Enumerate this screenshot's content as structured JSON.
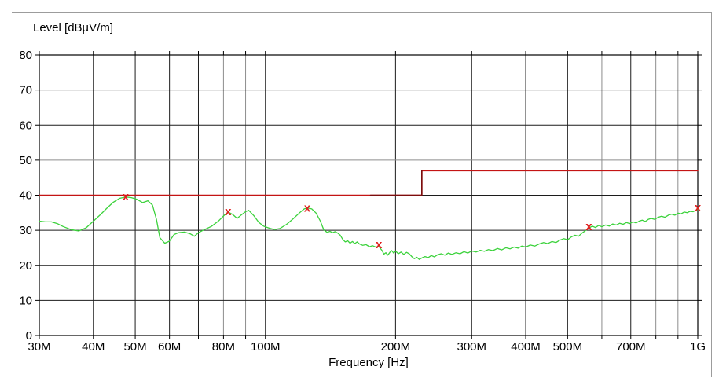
{
  "page": {
    "frame_color": "#9c9c9c"
  },
  "chart_data": {
    "type": "line",
    "title": "Level [dBµV/m]",
    "xlabel": "Frequency [Hz]",
    "x_scale": "log",
    "x_range_mhz": [
      30,
      1000
    ],
    "y_range": [
      0,
      80
    ],
    "grid_on": true,
    "colors": {
      "grid_dark": "#1c1c1c",
      "grid_gray": "#8d8d8d",
      "border": "#000000",
      "limit_red": "#c41414",
      "limit_dark_red": "#7b0d0d",
      "trace_green": "#3cd23c",
      "marker_red": "#e02020",
      "text": "#000000"
    },
    "y_ticks": [
      0,
      10,
      20,
      30,
      40,
      50,
      60,
      70,
      80
    ],
    "y_grid_dark": [
      10,
      20,
      30,
      40,
      60,
      70
    ],
    "y_grid_gray": [
      50
    ],
    "x_grid_dark_mhz": [
      40,
      50,
      60,
      70,
      100,
      200,
      300,
      400,
      500,
      700
    ],
    "x_grid_gray_mhz": [
      80,
      90,
      600,
      800,
      900
    ],
    "x_tick_labels": [
      {
        "f": 30,
        "label": "30M"
      },
      {
        "f": 40,
        "label": "40M"
      },
      {
        "f": 50,
        "label": "50M"
      },
      {
        "f": 60,
        "label": "60M"
      },
      {
        "f": 80,
        "label": "80M"
      },
      {
        "f": 100,
        "label": "100M"
      },
      {
        "f": 200,
        "label": "200M"
      },
      {
        "f": 300,
        "label": "300M"
      },
      {
        "f": 400,
        "label": "400M"
      },
      {
        "f": 500,
        "label": "500M"
      },
      {
        "f": 700,
        "label": "700M"
      },
      {
        "f": 1000,
        "label": "1G"
      }
    ],
    "series": [
      {
        "name": "limit-line",
        "kind": "limit",
        "color_key": "limit_red",
        "points_mhz_db": [
          [
            30,
            40
          ],
          [
            230,
            40
          ],
          [
            230,
            47
          ],
          [
            1000,
            47
          ]
        ]
      },
      {
        "name": "limit-line-dark-overlap",
        "kind": "limit",
        "color_key": "limit_dark_red",
        "points_mhz_db": [
          [
            175,
            40
          ],
          [
            230,
            40
          ],
          [
            230,
            47
          ]
        ]
      },
      {
        "name": "measurement-trace",
        "kind": "trace",
        "color_key": "trace_green",
        "points_mhz_db": [
          [
            30,
            32.6
          ],
          [
            31,
            32.4
          ],
          [
            32,
            32.4
          ],
          [
            33,
            31.9
          ],
          [
            34,
            31.1
          ],
          [
            35.5,
            30.2
          ],
          [
            37,
            29.8
          ],
          [
            38.5,
            30.7
          ],
          [
            40,
            32.6
          ],
          [
            41.5,
            34.4
          ],
          [
            43,
            36.3
          ],
          [
            44.5,
            38.0
          ],
          [
            46,
            39.1
          ],
          [
            47.5,
            39.5
          ],
          [
            49,
            39.3
          ],
          [
            50.5,
            38.8
          ],
          [
            52,
            37.9
          ],
          [
            53.5,
            38.4
          ],
          [
            54.8,
            37.2
          ],
          [
            56,
            33.0
          ],
          [
            57,
            27.9
          ],
          [
            58.5,
            26.3
          ],
          [
            60,
            26.9
          ],
          [
            61.5,
            28.8
          ],
          [
            63,
            29.3
          ],
          [
            65,
            29.5
          ],
          [
            67,
            29.0
          ],
          [
            68.5,
            28.3
          ],
          [
            70,
            29.3
          ],
          [
            72,
            30.1
          ],
          [
            75,
            31.1
          ],
          [
            78,
            32.7
          ],
          [
            80.5,
            34.4
          ],
          [
            82,
            35.2
          ],
          [
            84,
            34.5
          ],
          [
            86,
            33.4
          ],
          [
            88,
            34.4
          ],
          [
            90,
            35.3
          ],
          [
            91.5,
            35.7
          ],
          [
            94,
            34.2
          ],
          [
            96.5,
            32.3
          ],
          [
            99,
            31.2
          ],
          [
            102,
            30.6
          ],
          [
            105,
            30.2
          ],
          [
            108,
            30.5
          ],
          [
            112,
            31.7
          ],
          [
            116,
            33.3
          ],
          [
            120,
            35.0
          ],
          [
            123,
            36.1
          ],
          [
            125,
            36.4
          ],
          [
            128,
            36.1
          ],
          [
            131,
            34.9
          ],
          [
            134,
            32.6
          ],
          [
            136.5,
            30.1
          ],
          [
            139,
            29.4
          ],
          [
            141,
            29.7
          ],
          [
            143,
            29.3
          ],
          [
            145,
            29.6
          ],
          [
            147,
            29.2
          ],
          [
            149,
            28.6
          ],
          [
            151,
            27.4
          ],
          [
            153,
            26.7
          ],
          [
            155,
            27.0
          ],
          [
            157,
            26.3
          ],
          [
            159,
            26.8
          ],
          [
            161,
            26.2
          ],
          [
            163,
            26.7
          ],
          [
            165,
            26.1
          ],
          [
            168,
            25.7
          ],
          [
            171,
            25.9
          ],
          [
            174,
            25.3
          ],
          [
            177,
            25.6
          ],
          [
            180,
            25.2
          ],
          [
            183,
            25.4
          ],
          [
            186,
            24.3
          ],
          [
            188,
            23.2
          ],
          [
            190,
            23.6
          ],
          [
            192,
            22.9
          ],
          [
            194,
            23.7
          ],
          [
            196,
            24.2
          ],
          [
            198,
            23.5
          ],
          [
            200,
            24.1
          ],
          [
            203,
            23.3
          ],
          [
            206,
            23.8
          ],
          [
            209,
            23.1
          ],
          [
            212,
            23.7
          ],
          [
            215,
            23.3
          ],
          [
            218,
            22.5
          ],
          [
            221,
            21.9
          ],
          [
            224,
            22.3
          ],
          [
            227,
            21.7
          ],
          [
            230,
            22.1
          ],
          [
            234,
            22.5
          ],
          [
            238,
            22.2
          ],
          [
            242,
            22.8
          ],
          [
            246,
            22.4
          ],
          [
            250,
            23.0
          ],
          [
            255,
            23.3
          ],
          [
            260,
            22.9
          ],
          [
            265,
            23.5
          ],
          [
            270,
            23.1
          ],
          [
            276,
            23.6
          ],
          [
            282,
            23.3
          ],
          [
            288,
            23.9
          ],
          [
            294,
            23.5
          ],
          [
            300,
            24.1
          ],
          [
            307,
            23.8
          ],
          [
            314,
            24.3
          ],
          [
            321,
            24.0
          ],
          [
            328,
            24.5
          ],
          [
            336,
            24.2
          ],
          [
            344,
            24.8
          ],
          [
            352,
            24.4
          ],
          [
            360,
            25.0
          ],
          [
            368,
            24.7
          ],
          [
            376,
            25.2
          ],
          [
            384,
            24.9
          ],
          [
            392,
            25.5
          ],
          [
            400,
            25.2
          ],
          [
            410,
            25.8
          ],
          [
            420,
            25.5
          ],
          [
            430,
            26.1
          ],
          [
            440,
            26.5
          ],
          [
            450,
            26.2
          ],
          [
            460,
            26.8
          ],
          [
            470,
            26.5
          ],
          [
            480,
            27.2
          ],
          [
            490,
            27.6
          ],
          [
            500,
            27.3
          ],
          [
            510,
            28.1
          ],
          [
            520,
            28.6
          ],
          [
            530,
            28.3
          ],
          [
            540,
            29.2
          ],
          [
            550,
            29.9
          ],
          [
            560,
            30.6
          ],
          [
            570,
            31.2
          ],
          [
            580,
            30.8
          ],
          [
            590,
            31.4
          ],
          [
            600,
            31.0
          ],
          [
            612,
            31.5
          ],
          [
            624,
            31.2
          ],
          [
            636,
            31.8
          ],
          [
            648,
            31.5
          ],
          [
            660,
            32.0
          ],
          [
            672,
            31.7
          ],
          [
            684,
            32.2
          ],
          [
            696,
            31.9
          ],
          [
            708,
            32.4
          ],
          [
            720,
            32.1
          ],
          [
            732,
            32.6
          ],
          [
            744,
            32.9
          ],
          [
            756,
            32.5
          ],
          [
            768,
            33.1
          ],
          [
            780,
            33.4
          ],
          [
            795,
            33.1
          ],
          [
            810,
            33.7
          ],
          [
            825,
            34.0
          ],
          [
            840,
            33.7
          ],
          [
            855,
            34.3
          ],
          [
            870,
            34.6
          ],
          [
            885,
            34.3
          ],
          [
            900,
            34.9
          ],
          [
            915,
            34.7
          ],
          [
            930,
            35.2
          ],
          [
            945,
            35.0
          ],
          [
            960,
            35.4
          ],
          [
            975,
            35.3
          ],
          [
            990,
            35.7
          ],
          [
            1000,
            35.9
          ]
        ]
      }
    ],
    "markers": {
      "symbol": "x",
      "color_key": "marker_red",
      "points_mhz_db": [
        [
          47.5,
          39.7
        ],
        [
          82,
          35.4
        ],
        [
          125,
          36.4
        ],
        [
          183,
          26.0
        ],
        [
          560,
          31.2
        ],
        [
          1000,
          36.5
        ]
      ]
    }
  }
}
